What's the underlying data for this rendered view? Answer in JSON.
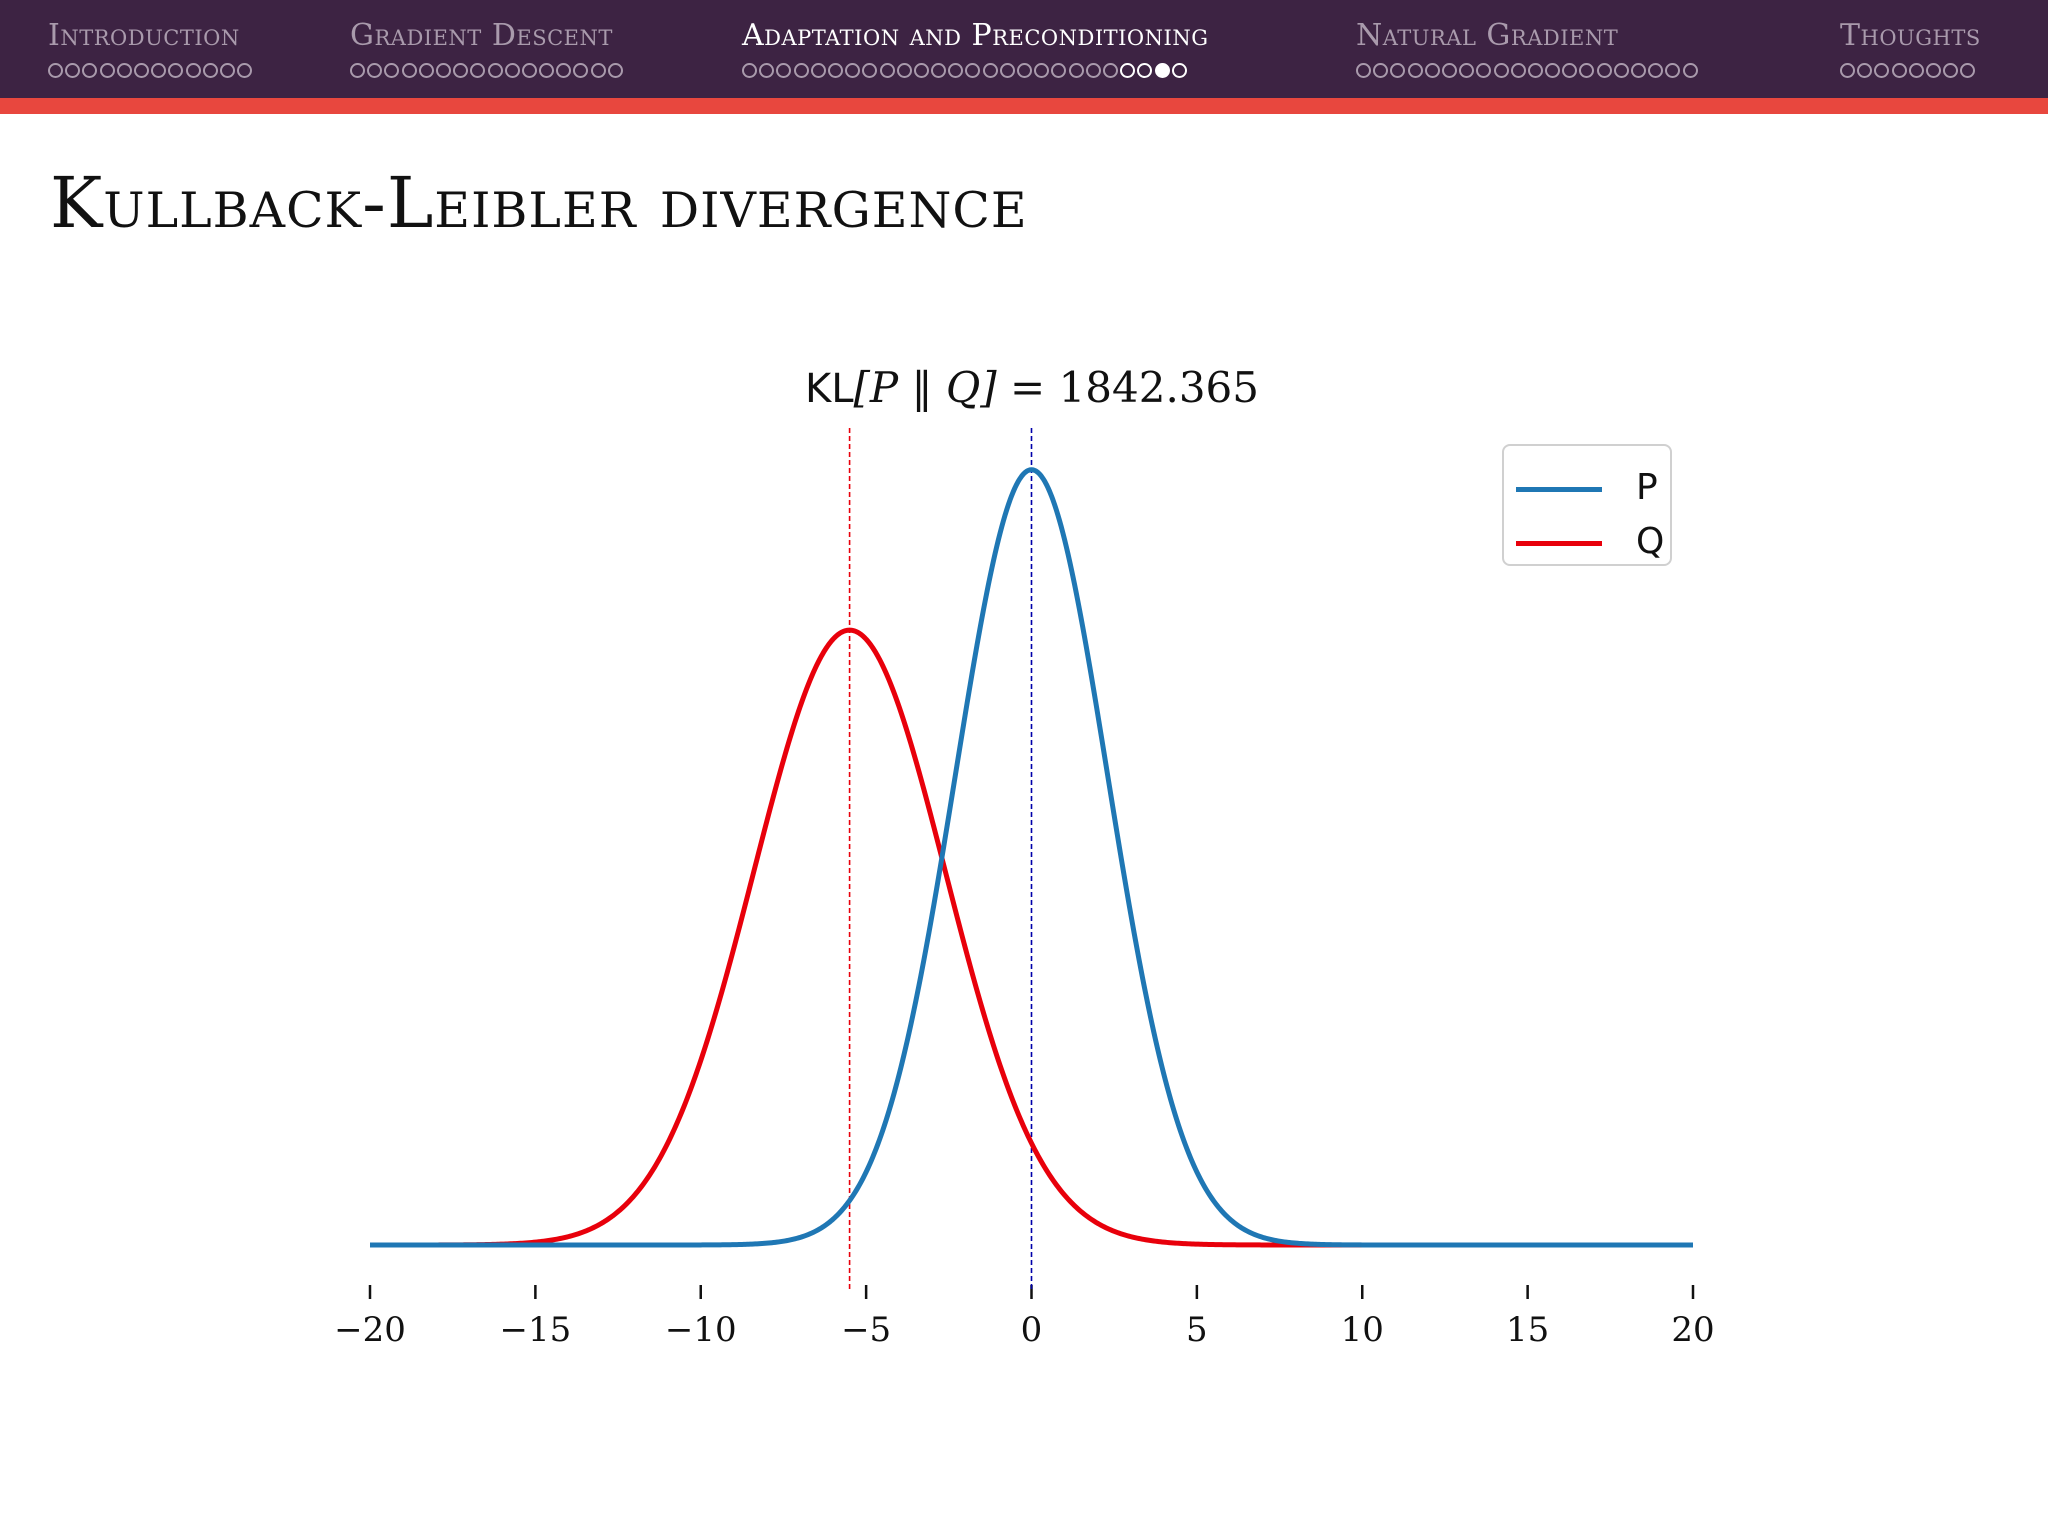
{
  "nav": {
    "sections": [
      {
        "label": "Introduction",
        "dot_count": 12,
        "current": false,
        "filled_index": -1
      },
      {
        "label": "Gradient Descent",
        "dot_count": 16,
        "current": false,
        "filled_index": -1
      },
      {
        "label": "Adaptation and Preconditioning",
        "dot_count": 26,
        "current": true,
        "filled_index": 24
      },
      {
        "label": "Natural Gradient",
        "dot_count": 20,
        "current": false,
        "filled_index": -1
      },
      {
        "label": "Thoughts",
        "dot_count": 8,
        "current": false,
        "filled_index": -1
      }
    ]
  },
  "slide": {
    "title": "Kullback-Leibler divergence"
  },
  "colors": {
    "header_bg": "#3d2343",
    "accent": "#e8473e",
    "series_p": "#1f77b4",
    "series_q": "#e8000b",
    "mean_p_line": "#0000aa",
    "mean_q_line": "#e8000b"
  },
  "chart_data": {
    "type": "line",
    "title": "KL[P ‖ Q] = 1842.365",
    "title_parts": {
      "kl": "KL",
      "expr": "[P ‖ Q]",
      "eq": " = 1842.365"
    },
    "xlabel": "",
    "ylabel": "",
    "xlim": [
      -20,
      20
    ],
    "ylim": [
      0,
      0.175
    ],
    "xticks": [
      -20,
      -15,
      -10,
      -5,
      0,
      5,
      10,
      15,
      20
    ],
    "xtick_labels": [
      "−20",
      "−15",
      "−10",
      "−5",
      "0",
      "5",
      "10",
      "15",
      "20"
    ],
    "grid": false,
    "legend": {
      "position": "top-right",
      "entries": [
        "P",
        "Q"
      ]
    },
    "series": [
      {
        "name": "P",
        "distribution": "normal",
        "mean": 0,
        "std": 2.3,
        "peak_density": 0.1735
      },
      {
        "name": "Q",
        "distribution": "normal",
        "mean": -5.5,
        "std": 2.9,
        "peak_density": 0.1376
      }
    ],
    "mean_lines": [
      {
        "series": "P",
        "x": 0,
        "style": "dashed"
      },
      {
        "series": "Q",
        "x": -5.5,
        "style": "dashed"
      }
    ]
  }
}
